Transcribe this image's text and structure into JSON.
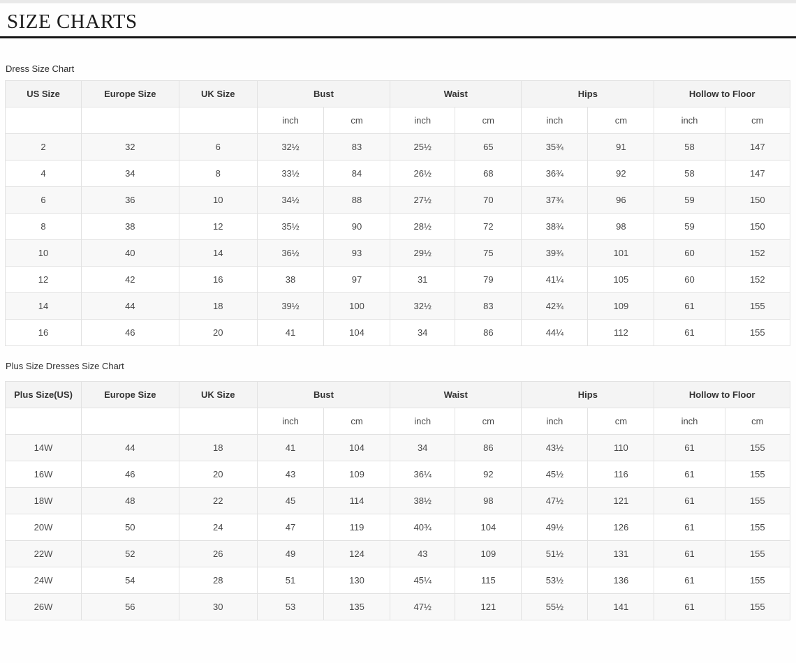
{
  "page": {
    "title": "SIZE CHARTS"
  },
  "tables": [
    {
      "caption": "Dress Size Chart",
      "size_columns": [
        "US Size",
        "Europe Size",
        "UK Size"
      ],
      "measure_columns": [
        "Bust",
        "Waist",
        "Hips",
        "Hollow to Floor"
      ],
      "units": [
        "inch",
        "cm"
      ],
      "rows": [
        [
          "2",
          "32",
          "6",
          "32½",
          "83",
          "25½",
          "65",
          "35¾",
          "91",
          "58",
          "147"
        ],
        [
          "4",
          "34",
          "8",
          "33½",
          "84",
          "26½",
          "68",
          "36¾",
          "92",
          "58",
          "147"
        ],
        [
          "6",
          "36",
          "10",
          "34½",
          "88",
          "27½",
          "70",
          "37¾",
          "96",
          "59",
          "150"
        ],
        [
          "8",
          "38",
          "12",
          "35½",
          "90",
          "28½",
          "72",
          "38¾",
          "98",
          "59",
          "150"
        ],
        [
          "10",
          "40",
          "14",
          "36½",
          "93",
          "29½",
          "75",
          "39¾",
          "101",
          "60",
          "152"
        ],
        [
          "12",
          "42",
          "16",
          "38",
          "97",
          "31",
          "79",
          "41¼",
          "105",
          "60",
          "152"
        ],
        [
          "14",
          "44",
          "18",
          "39½",
          "100",
          "32½",
          "83",
          "42¾",
          "109",
          "61",
          "155"
        ],
        [
          "16",
          "46",
          "20",
          "41",
          "104",
          "34",
          "86",
          "44¼",
          "112",
          "61",
          "155"
        ]
      ]
    },
    {
      "caption": "Plus Size Dresses Size Chart",
      "size_columns": [
        "Plus Size(US)",
        "Europe Size",
        "UK Size"
      ],
      "measure_columns": [
        "Bust",
        "Waist",
        "Hips",
        "Hollow to Floor"
      ],
      "units": [
        "inch",
        "cm"
      ],
      "rows": [
        [
          "14W",
          "44",
          "18",
          "41",
          "104",
          "34",
          "86",
          "43½",
          "110",
          "61",
          "155"
        ],
        [
          "16W",
          "46",
          "20",
          "43",
          "109",
          "36¼",
          "92",
          "45½",
          "116",
          "61",
          "155"
        ],
        [
          "18W",
          "48",
          "22",
          "45",
          "114",
          "38½",
          "98",
          "47½",
          "121",
          "61",
          "155"
        ],
        [
          "20W",
          "50",
          "24",
          "47",
          "119",
          "40¾",
          "104",
          "49½",
          "126",
          "61",
          "155"
        ],
        [
          "22W",
          "52",
          "26",
          "49",
          "124",
          "43",
          "109",
          "51½",
          "131",
          "61",
          "155"
        ],
        [
          "24W",
          "54",
          "28",
          "51",
          "130",
          "45¼",
          "115",
          "53½",
          "136",
          "61",
          "155"
        ],
        [
          "26W",
          "56",
          "30",
          "53",
          "135",
          "47½",
          "121",
          "55½",
          "141",
          "61",
          "155"
        ]
      ]
    }
  ],
  "style": {
    "rule_color": "#161616",
    "header_bg": "#f4f4f4",
    "stripe_bg": "#f8f8f8",
    "border_color": "#e2e2e2"
  }
}
